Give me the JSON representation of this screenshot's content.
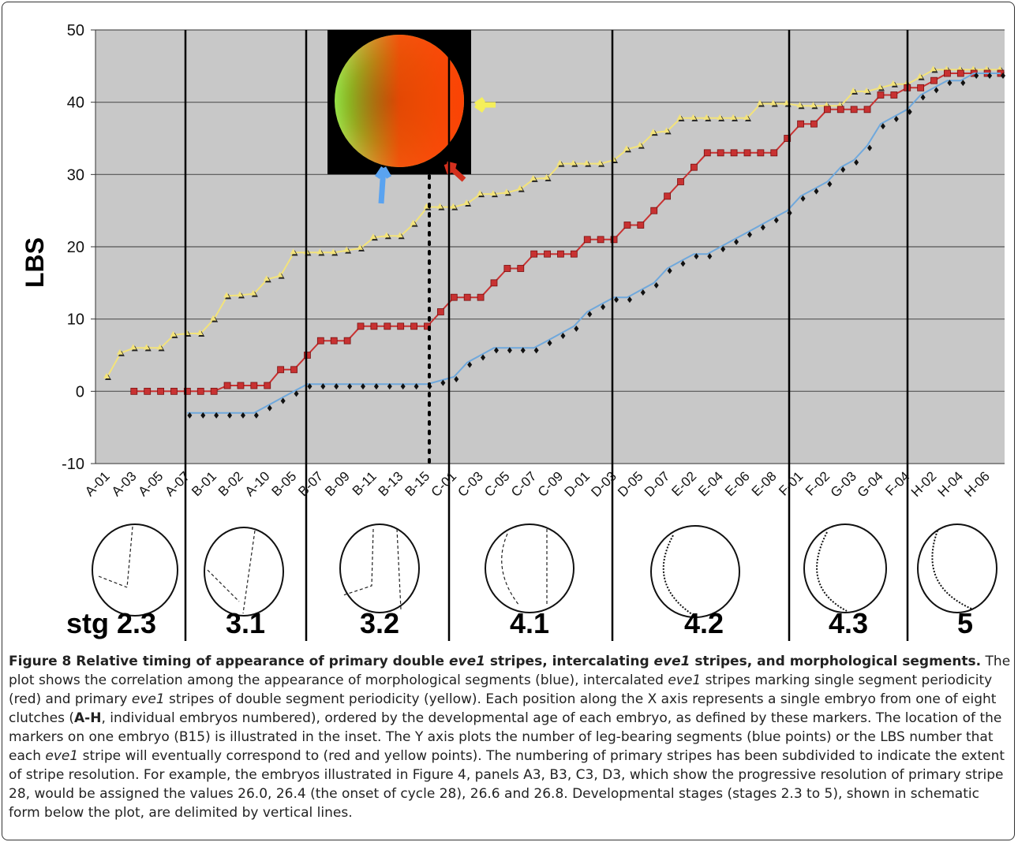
{
  "chart_data": {
    "type": "line",
    "ylabel": "LBS",
    "categories": [
      "A-01",
      null,
      "A-03",
      null,
      "A-05",
      null,
      "A-07",
      null,
      "B-01",
      null,
      "B-02",
      null,
      "A-10",
      null,
      "B-05",
      null,
      "B-07",
      null,
      "B-09",
      null,
      "B-11",
      null,
      "B-13",
      null,
      "B-15",
      null,
      "C-01",
      null,
      "C-03",
      null,
      "C-05",
      null,
      "C-07",
      null,
      "C-09",
      null,
      "D-01",
      null,
      "D-03",
      null,
      "D-05",
      null,
      "D-07",
      null,
      "E-02",
      null,
      "E-04",
      null,
      "E-06",
      null,
      "E-08",
      null,
      "F-01",
      null,
      "F-02",
      null,
      "G-03",
      null,
      "G-04",
      null,
      "F-04",
      null,
      "H-02",
      null,
      "H-04",
      null,
      "H-06",
      null
    ],
    "series": [
      {
        "color": "#f3e37a",
        "marker": "triangle",
        "values": [
          2,
          5.3,
          6,
          6,
          6,
          7.8,
          8,
          8,
          10,
          13.2,
          13.3,
          13.5,
          15.5,
          16,
          19.2,
          19.2,
          19.2,
          19.2,
          19.5,
          19.8,
          21.3,
          21.5,
          21.5,
          23.2,
          25.5,
          25.5,
          25.5,
          26,
          27.3,
          27.3,
          27.5,
          28,
          29.4,
          29.5,
          31.5,
          31.5,
          31.5,
          31.5,
          32,
          33.5,
          34,
          35.8,
          36,
          37.8,
          37.8,
          37.8,
          37.8,
          37.8,
          37.8,
          39.8,
          39.8,
          39.8,
          39.5,
          39.5,
          39.5,
          39.5,
          41.5,
          41.5,
          42,
          42.5,
          42.5,
          43.5,
          44.5,
          44.5,
          44.5,
          44.5,
          44.5,
          44.5
        ]
      },
      {
        "color": "#c83232",
        "marker": "square",
        "values": [
          null,
          null,
          0,
          0,
          0,
          0,
          0,
          0,
          0,
          0.8,
          0.8,
          0.8,
          0.8,
          3,
          3,
          5,
          7,
          7,
          7,
          9,
          9,
          9,
          9,
          9,
          9,
          11,
          13,
          13,
          13,
          15,
          17,
          17,
          19,
          19,
          19,
          19,
          21,
          21,
          21,
          23,
          23,
          25,
          27,
          29,
          31,
          33,
          33,
          33,
          33,
          33,
          33,
          35,
          37,
          37,
          39,
          39,
          39,
          39,
          41,
          41,
          42,
          42,
          43,
          44,
          44,
          44,
          44,
          44
        ]
      },
      {
        "color": "#6fa8dc",
        "marker": "diamond",
        "values": [
          null,
          null,
          null,
          null,
          null,
          null,
          -3,
          -3,
          -3,
          -3,
          -3,
          -3,
          -2,
          -1,
          0,
          1,
          1,
          1,
          1,
          1,
          1,
          1,
          1,
          1,
          1,
          1.5,
          2,
          4,
          5,
          6,
          6,
          6,
          6,
          7,
          8,
          9,
          11,
          12,
          13,
          13,
          14,
          15,
          17,
          18,
          19,
          19,
          20,
          21,
          22,
          23,
          24,
          25,
          27,
          28,
          29,
          31,
          32,
          34,
          37,
          38,
          39,
          41,
          42,
          43,
          43,
          44,
          44,
          44
        ]
      }
    ],
    "ylim": [
      -10,
      50
    ],
    "yticks": [
      -10,
      0,
      10,
      20,
      30,
      40,
      50
    ],
    "grid": true,
    "annotations": [
      "stg 2.3",
      "3.1",
      "3.2",
      "4.1",
      "4.2",
      "4.3",
      "5"
    ]
  },
  "caption": {
    "runs": [
      "Figure 8 Relative timing of appearance of primary double ",
      "eve1",
      " stripes, intercalating ",
      "eve1",
      " stripes, and morphological segments.",
      " The plot shows the correlation among the appearance of morphological segments (blue), intercalated ",
      "eve1",
      " stripes marking single segment periodicity (red) and primary ",
      "eve1",
      " stripes of double segment periodicity (yellow). Each position along the X axis represents a single embryo from one of eight clutches (",
      "A-H",
      ", individual embryos numbered), ordered by the developmental age of each embryo, as defined by these markers. The location of the markers on one embryo (B15) is illustrated in the inset. The Y axis plots the number of leg-bearing segments (blue points) or the LBS number that each ",
      "eve1",
      " stripe will eventually correspond to (red and yellow points). The numbering of primary stripes has been subdivided to indicate the extent of stripe resolution. For example, the embryos illustrated in Figure 4, panels A3, B3, C3, D3, which show the progressive resolution of primary stripe 28, would be assigned the values 26.0, 26.4 (the onset of cycle 28), 26.6 and 26.8. Developmental stages (stages 2.3 to 5), shown in schematic form below the plot, are delimited by vertical lines."
    ]
  }
}
